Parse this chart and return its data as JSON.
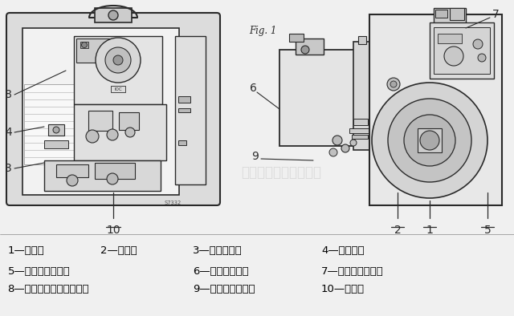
{
  "fig_label": "Fig. 1",
  "serial_number": "S7332",
  "background_color": "#f0f0f0",
  "text_color": "#000000",
  "legend_rows": [
    [
      [
        "1—回油管",
        0.015
      ],
      [
        "2—进油管",
        0.195
      ],
      [
        "3—压力表接口",
        0.375
      ],
      [
        "4—调压螺钉",
        0.625
      ]
    ],
    [
      [
        "5—进油压力表接口",
        0.015
      ],
      [
        "6—液压传动装置",
        0.375
      ],
      [
        "7—燃烧头调节螺丝",
        0.625
      ]
    ],
    [
      [
        "8—锁定指示灯及复位按鈕",
        0.015
      ],
      [
        "9—带密封坠的法兰",
        0.375
      ],
      [
        "10—增压缸",
        0.625
      ]
    ]
  ],
  "legend_fontsize": 9.5,
  "label_fontsize": 9,
  "watermark_text": "建心电子科技有限公司",
  "watermark_color": "#c8c8c8",
  "watermark_alpha": 0.55
}
